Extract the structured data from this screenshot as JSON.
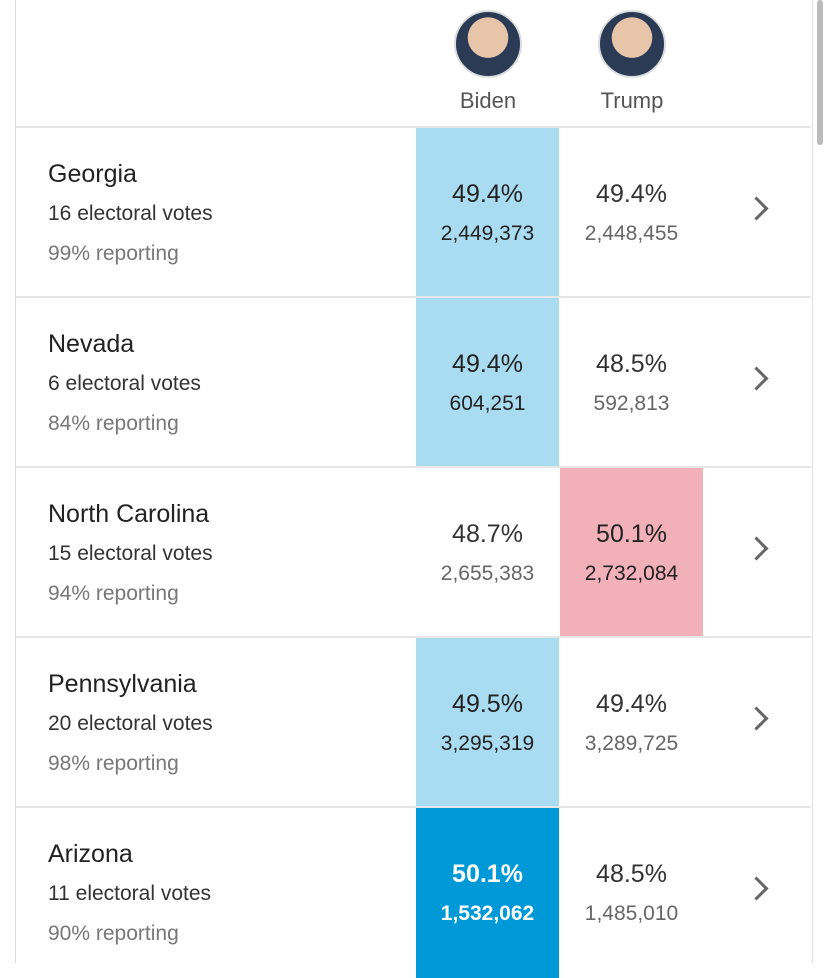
{
  "header": {
    "candidates": [
      "Biden",
      "Trump"
    ]
  },
  "rows": [
    {
      "state": "Georgia",
      "electoral": "16 electoral votes",
      "reporting": "99% reporting",
      "results": [
        {
          "pct": "49.4%",
          "votes": "2,449,373",
          "color": "#a9dcf1"
        },
        {
          "pct": "49.4%",
          "votes": "2,448,455"
        }
      ]
    },
    {
      "state": "Nevada",
      "electoral": "6 electoral votes",
      "reporting": "84% reporting",
      "results": [
        {
          "pct": "49.4%",
          "votes": "604,251",
          "color": "#a9dcf1"
        },
        {
          "pct": "48.5%",
          "votes": "592,813"
        }
      ]
    },
    {
      "state": "North Carolina",
      "electoral": "15 electoral votes",
      "reporting": "94% reporting",
      "results": [
        {
          "pct": "48.7%",
          "votes": "2,655,383"
        },
        {
          "pct": "50.1%",
          "votes": "2,732,084",
          "color": "#f2b1b8"
        }
      ]
    },
    {
      "state": "Pennsylvania",
      "electoral": "20 electoral votes",
      "reporting": "98% reporting",
      "results": [
        {
          "pct": "49.5%",
          "votes": "3,295,319",
          "color": "#a9dcf1"
        },
        {
          "pct": "49.4%",
          "votes": "3,289,725"
        }
      ]
    },
    {
      "state": "Arizona",
      "electoral": "11 electoral votes",
      "reporting": "90% reporting",
      "results": [
        {
          "pct": "50.1%",
          "votes": "1,532,062",
          "color": "#0099d8",
          "text_color": "#ffffff"
        },
        {
          "pct": "48.5%",
          "votes": "1,485,010"
        }
      ]
    }
  ]
}
